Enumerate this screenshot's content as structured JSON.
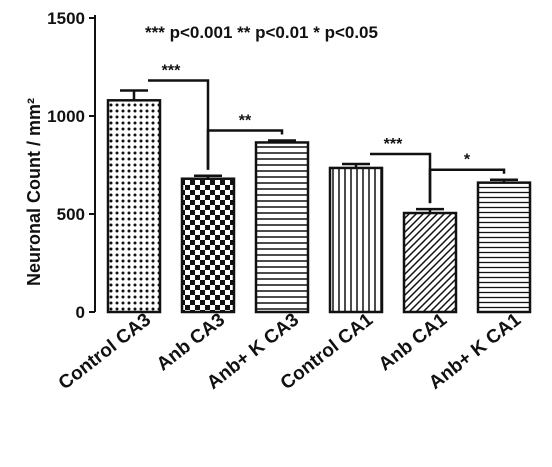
{
  "chart_data": {
    "type": "bar",
    "title": "*** p<0.001 ** p<0.01 * p<0.05",
    "xlabel": "",
    "ylabel": "Neuronal Count / mm²",
    "ylim": [
      0,
      1500
    ],
    "yticks": [
      0,
      500,
      1000,
      1500
    ],
    "categories": [
      "Control CA3",
      "Anb CA3",
      "Anb+ K CA3",
      "Control CA1",
      "Anb CA1",
      "Anb+ K CA1"
    ],
    "values": [
      1080,
      680,
      865,
      735,
      505,
      660
    ],
    "errors": [
      50,
      15,
      10,
      20,
      20,
      15
    ],
    "patterns": [
      "dots",
      "checker",
      "hlines",
      "vlines",
      "diag-right",
      "hlines-fine"
    ],
    "significance": [
      {
        "from": 0,
        "to": 1,
        "label": "***"
      },
      {
        "from": 1,
        "to": 2,
        "label": "**"
      },
      {
        "from": 3,
        "to": 4,
        "label": "***"
      },
      {
        "from": 4,
        "to": 5,
        "label": "*"
      }
    ],
    "grid": false,
    "legend": "none",
    "colors": {
      "ink": "#111111",
      "fill": "#ffffff"
    }
  }
}
